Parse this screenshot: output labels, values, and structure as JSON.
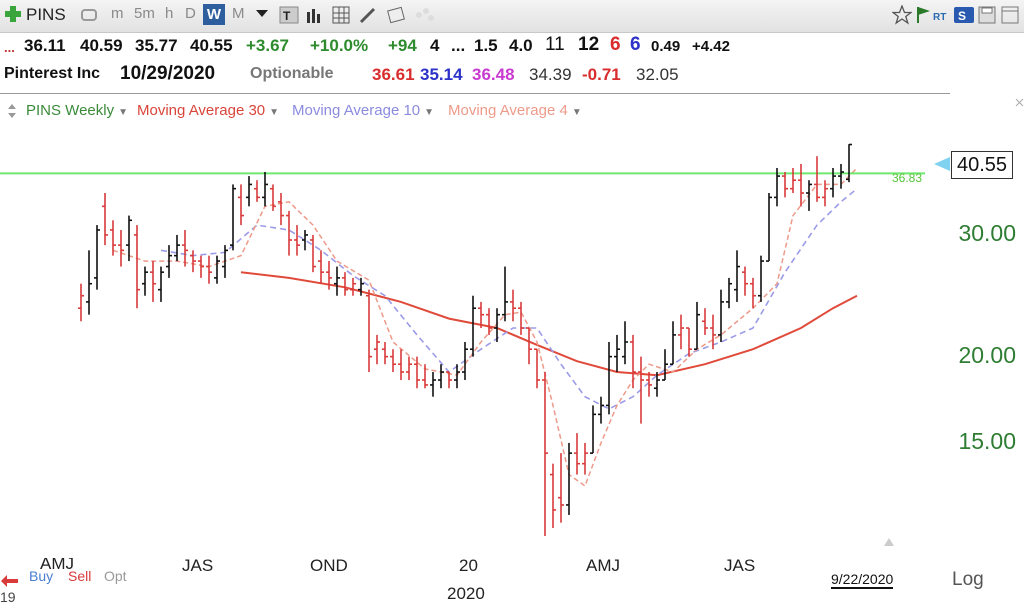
{
  "toolbar": {
    "symbol": "PINS",
    "timeframes": [
      "m",
      "5m",
      "h",
      "D",
      "W",
      "M"
    ],
    "active_timeframe": "W"
  },
  "quote_row1": {
    "ellipsis": "...",
    "open": "36.11",
    "high": "40.59",
    "low": "35.77",
    "close": "40.55",
    "change": "+3.67",
    "change_pct": "+10.0%",
    "rank": "+94",
    "v1": "4",
    "dots": "...",
    "v2": "1.5",
    "v3": "4.0",
    "v4": "11",
    "v5": "12",
    "v6": "6",
    "v7": "6",
    "v8": "0.49",
    "v9": "+4.42"
  },
  "quote_row2": {
    "name": "Pinterest Inc",
    "date": "10/29/2020",
    "optionable": "Optionable",
    "v1": "36.61",
    "v2": "35.14",
    "v3": "36.48",
    "v4": "34.39",
    "v5": "-0.71",
    "v6": "32.05"
  },
  "legend": {
    "series": "PINS Weekly",
    "ma30": "Moving Average 30",
    "ma10": "Moving Average 10",
    "ma4": "Moving Average 4"
  },
  "colors": {
    "up": "#111111",
    "down": "#d93a3a",
    "ma30": "#e04a3a",
    "ma10": "#9b9be8",
    "ma4": "#ee9a8a",
    "level": "#6ee86e",
    "axis_green": "#2e7d32"
  },
  "price_axis": {
    "ticks": [
      "30.00",
      "20.00",
      "15.00"
    ]
  },
  "last_price": "40.55",
  "level_line": {
    "value": 36.83,
    "label": "36.83"
  },
  "x_axis": {
    "labels": [
      "AMJ",
      "JAS",
      "OND",
      "20",
      "AMJ",
      "JAS"
    ],
    "year": "2020",
    "left_year_fragment": "19"
  },
  "bottom": {
    "buy": "Buy",
    "sell": "Sell",
    "opt": "Opt",
    "date": "9/22/2020",
    "log": "Log"
  },
  "chart_data": {
    "type": "line",
    "title": "PINS Weekly",
    "price_scale": "log",
    "ylim": [
      10.5,
      44
    ],
    "bars": [
      {
        "h": 25.5,
        "l": 22.5,
        "o": 23.5,
        "c": 24.5,
        "up": false
      },
      {
        "h": 28.5,
        "l": 23.0,
        "o": 24.0,
        "c": 25.5,
        "up": true
      },
      {
        "h": 31.0,
        "l": 25.0,
        "o": 26.0,
        "c": 30.5,
        "up": true
      },
      {
        "h": 34.5,
        "l": 29.0,
        "o": 33.0,
        "c": 30.0,
        "up": false
      },
      {
        "h": 31.5,
        "l": 28.0,
        "o": 30.5,
        "c": 29.0,
        "up": false
      },
      {
        "h": 30.5,
        "l": 27.0,
        "o": 29.0,
        "c": 28.5,
        "up": false
      },
      {
        "h": 32.0,
        "l": 27.5,
        "o": 29.0,
        "c": 31.5,
        "up": true
      },
      {
        "h": 31.0,
        "l": 23.5,
        "o": 30.0,
        "c": 25.0,
        "up": false
      },
      {
        "h": 27.0,
        "l": 24.5,
        "o": 25.5,
        "c": 26.5,
        "up": true
      },
      {
        "h": 27.5,
        "l": 24.0,
        "o": 26.5,
        "c": 25.5,
        "up": false
      },
      {
        "h": 27.0,
        "l": 24.0,
        "o": 25.0,
        "c": 26.5,
        "up": true
      },
      {
        "h": 29.0,
        "l": 26.0,
        "o": 27.0,
        "c": 28.0,
        "up": true
      },
      {
        "h": 30.0,
        "l": 27.5,
        "o": 28.0,
        "c": 29.0,
        "up": true
      },
      {
        "h": 30.5,
        "l": 27.0,
        "o": 29.0,
        "c": 28.5,
        "up": false
      },
      {
        "h": 28.5,
        "l": 26.5,
        "o": 28.0,
        "c": 27.5,
        "up": false
      },
      {
        "h": 28.0,
        "l": 26.0,
        "o": 27.5,
        "c": 27.0,
        "up": false
      },
      {
        "h": 28.0,
        "l": 25.5,
        "o": 27.0,
        "c": 26.5,
        "up": false
      },
      {
        "h": 28.0,
        "l": 25.5,
        "o": 26.0,
        "c": 27.5,
        "up": true
      },
      {
        "h": 29.0,
        "l": 26.0,
        "o": 27.0,
        "c": 28.5,
        "up": true
      },
      {
        "h": 35.5,
        "l": 28.5,
        "o": 29.0,
        "c": 35.0,
        "up": true
      },
      {
        "h": 35.5,
        "l": 31.0,
        "o": 34.0,
        "c": 32.0,
        "up": false
      },
      {
        "h": 36.5,
        "l": 33.0,
        "o": 34.0,
        "c": 35.5,
        "up": true
      },
      {
        "h": 36.0,
        "l": 33.5,
        "o": 35.0,
        "c": 34.0,
        "up": false
      },
      {
        "h": 37.0,
        "l": 33.0,
        "o": 34.0,
        "c": 35.5,
        "up": true
      },
      {
        "h": 35.5,
        "l": 32.5,
        "o": 35.0,
        "c": 33.0,
        "up": false
      },
      {
        "h": 34.5,
        "l": 31.0,
        "o": 33.5,
        "c": 32.0,
        "up": false
      },
      {
        "h": 32.5,
        "l": 28.0,
        "o": 32.0,
        "c": 29.5,
        "up": false
      },
      {
        "h": 31.0,
        "l": 28.0,
        "o": 29.5,
        "c": 29.0,
        "up": false
      },
      {
        "h": 30.5,
        "l": 28.5,
        "o": 29.5,
        "c": 30.0,
        "up": true
      },
      {
        "h": 30.0,
        "l": 26.5,
        "o": 29.5,
        "c": 27.0,
        "up": false
      },
      {
        "h": 28.5,
        "l": 25.5,
        "o": 27.5,
        "c": 26.5,
        "up": false
      },
      {
        "h": 27.5,
        "l": 25.0,
        "o": 26.5,
        "c": 26.0,
        "up": false
      },
      {
        "h": 27.0,
        "l": 24.5,
        "o": 25.5,
        "c": 26.0,
        "up": true
      },
      {
        "h": 26.5,
        "l": 24.5,
        "o": 26.0,
        "c": 25.0,
        "up": false
      },
      {
        "h": 26.0,
        "l": 24.5,
        "o": 25.0,
        "c": 25.5,
        "up": false
      },
      {
        "h": 26.0,
        "l": 24.5,
        "o": 25.0,
        "c": 25.5,
        "up": true
      },
      {
        "h": 25.0,
        "l": 19.0,
        "o": 24.5,
        "c": 20.0,
        "up": false
      },
      {
        "h": 21.5,
        "l": 19.5,
        "o": 20.5,
        "c": 21.0,
        "up": false
      },
      {
        "h": 21.0,
        "l": 19.5,
        "o": 20.5,
        "c": 20.0,
        "up": false
      },
      {
        "h": 20.5,
        "l": 19.0,
        "o": 20.0,
        "c": 19.5,
        "up": false
      },
      {
        "h": 20.5,
        "l": 18.5,
        "o": 19.5,
        "c": 19.0,
        "up": false
      },
      {
        "h": 20.0,
        "l": 18.5,
        "o": 19.0,
        "c": 19.5,
        "up": false
      },
      {
        "h": 20.0,
        "l": 18.0,
        "o": 19.5,
        "c": 18.5,
        "up": false
      },
      {
        "h": 19.5,
        "l": 18.0,
        "o": 18.5,
        "c": 18.2,
        "up": false
      },
      {
        "h": 19.0,
        "l": 17.5,
        "o": 18.2,
        "c": 18.5,
        "up": true
      },
      {
        "h": 19.5,
        "l": 18.0,
        "o": 18.5,
        "c": 19.0,
        "up": true
      },
      {
        "h": 19.0,
        "l": 18.0,
        "o": 19.0,
        "c": 18.5,
        "up": false
      },
      {
        "h": 19.5,
        "l": 18.0,
        "o": 18.5,
        "c": 19.0,
        "up": true
      },
      {
        "h": 21.0,
        "l": 18.5,
        "o": 19.0,
        "c": 20.5,
        "up": true
      },
      {
        "h": 24.5,
        "l": 20.0,
        "o": 20.5,
        "c": 23.5,
        "up": true
      },
      {
        "h": 24.0,
        "l": 22.0,
        "o": 23.5,
        "c": 23.0,
        "up": false
      },
      {
        "h": 23.5,
        "l": 21.5,
        "o": 23.0,
        "c": 22.0,
        "up": false
      },
      {
        "h": 23.5,
        "l": 21.0,
        "o": 22.0,
        "c": 23.0,
        "up": true
      },
      {
        "h": 27.0,
        "l": 22.5,
        "o": 23.0,
        "c": 24.0,
        "up": true
      },
      {
        "h": 25.0,
        "l": 22.5,
        "o": 24.0,
        "c": 23.5,
        "up": false
      },
      {
        "h": 24.0,
        "l": 21.5,
        "o": 23.5,
        "c": 22.0,
        "up": false
      },
      {
        "h": 22.0,
        "l": 19.5,
        "o": 22.0,
        "c": 20.5,
        "up": false
      },
      {
        "h": 20.5,
        "l": 18.0,
        "o": 20.5,
        "c": 18.5,
        "up": false
      },
      {
        "h": 19.0,
        "l": 11.0,
        "o": 18.5,
        "c": 14.5,
        "up": false
      },
      {
        "h": 14.0,
        "l": 11.3,
        "o": 13.5,
        "c": 12.0,
        "up": false
      },
      {
        "h": 14.5,
        "l": 11.5,
        "o": 12.5,
        "c": 12.2,
        "up": false
      },
      {
        "h": 15.0,
        "l": 11.8,
        "o": 12.2,
        "c": 14.5,
        "up": true
      },
      {
        "h": 15.5,
        "l": 13.5,
        "o": 14.5,
        "c": 14.0,
        "up": false
      },
      {
        "h": 15.0,
        "l": 13.5,
        "o": 14.0,
        "c": 14.5,
        "up": false
      },
      {
        "h": 17.0,
        "l": 14.5,
        "o": 14.5,
        "c": 16.5,
        "up": true
      },
      {
        "h": 17.5,
        "l": 16.0,
        "o": 16.5,
        "c": 17.0,
        "up": true
      },
      {
        "h": 21.0,
        "l": 16.5,
        "o": 17.0,
        "c": 20.0,
        "up": true
      },
      {
        "h": 21.5,
        "l": 19.0,
        "o": 20.0,
        "c": 20.5,
        "up": true
      },
      {
        "h": 22.5,
        "l": 19.5,
        "o": 20.0,
        "c": 21.0,
        "up": true
      },
      {
        "h": 21.5,
        "l": 18.0,
        "o": 21.0,
        "c": 19.0,
        "up": false
      },
      {
        "h": 20.0,
        "l": 16.0,
        "o": 19.0,
        "c": 18.5,
        "up": false
      },
      {
        "h": 19.0,
        "l": 17.5,
        "o": 18.5,
        "c": 18.2,
        "up": false
      },
      {
        "h": 19.0,
        "l": 17.5,
        "o": 18.0,
        "c": 18.5,
        "up": true
      },
      {
        "h": 20.5,
        "l": 18.5,
        "o": 18.5,
        "c": 19.5,
        "up": true
      },
      {
        "h": 22.5,
        "l": 19.5,
        "o": 19.5,
        "c": 21.5,
        "up": true
      },
      {
        "h": 23.0,
        "l": 20.5,
        "o": 21.5,
        "c": 22.0,
        "up": false
      },
      {
        "h": 22.0,
        "l": 20.0,
        "o": 22.0,
        "c": 20.5,
        "up": false
      },
      {
        "h": 24.0,
        "l": 20.5,
        "o": 20.5,
        "c": 23.0,
        "up": true
      },
      {
        "h": 23.5,
        "l": 21.5,
        "o": 22.5,
        "c": 22.0,
        "up": false
      },
      {
        "h": 23.0,
        "l": 20.5,
        "o": 22.0,
        "c": 21.5,
        "up": false
      },
      {
        "h": 25.0,
        "l": 21.0,
        "o": 21.5,
        "c": 24.0,
        "up": true
      },
      {
        "h": 26.0,
        "l": 23.5,
        "o": 24.0,
        "c": 25.5,
        "up": true
      },
      {
        "h": 28.5,
        "l": 24.0,
        "o": 25.0,
        "c": 27.0,
        "up": true
      },
      {
        "h": 27.0,
        "l": 24.5,
        "o": 26.5,
        "c": 25.5,
        "up": false
      },
      {
        "h": 26.0,
        "l": 23.5,
        "o": 25.5,
        "c": 24.5,
        "up": false
      },
      {
        "h": 28.0,
        "l": 24.0,
        "o": 24.5,
        "c": 27.5,
        "up": true
      },
      {
        "h": 34.5,
        "l": 27.5,
        "o": 27.5,
        "c": 34.0,
        "up": true
      },
      {
        "h": 37.5,
        "l": 33.0,
        "o": 34.0,
        "c": 36.5,
        "up": true
      },
      {
        "h": 37.0,
        "l": 34.0,
        "o": 36.5,
        "c": 35.0,
        "up": false
      },
      {
        "h": 37.5,
        "l": 34.5,
        "o": 35.0,
        "c": 36.0,
        "up": false
      },
      {
        "h": 38.0,
        "l": 33.0,
        "o": 36.0,
        "c": 34.5,
        "up": false
      },
      {
        "h": 36.0,
        "l": 32.5,
        "o": 34.5,
        "c": 35.5,
        "up": true
      },
      {
        "h": 39.0,
        "l": 33.5,
        "o": 35.5,
        "c": 34.0,
        "up": false
      },
      {
        "h": 36.0,
        "l": 33.0,
        "o": 34.0,
        "c": 35.0,
        "up": false
      },
      {
        "h": 37.5,
        "l": 34.0,
        "o": 35.0,
        "c": 36.5,
        "up": true
      },
      {
        "h": 38.0,
        "l": 35.0,
        "o": 36.5,
        "c": 37.0,
        "up": true
      },
      {
        "h": 40.59,
        "l": 35.77,
        "o": 36.11,
        "c": 40.55,
        "up": true
      }
    ],
    "ma30": [
      [
        20,
        26.5
      ],
      [
        26,
        26
      ],
      [
        33,
        25.2
      ],
      [
        40,
        24.0
      ],
      [
        46,
        22.7
      ],
      [
        52,
        22.0
      ],
      [
        57,
        20.8
      ],
      [
        62,
        19.7
      ],
      [
        67,
        19.0
      ],
      [
        72,
        18.8
      ],
      [
        78,
        19.5
      ],
      [
        84,
        20.5
      ],
      [
        90,
        22.0
      ],
      [
        94,
        23.5
      ],
      [
        97,
        24.5
      ]
    ],
    "ma10": [
      [
        10,
        28.5
      ],
      [
        14,
        28.0
      ],
      [
        18,
        28.3
      ],
      [
        22,
        31.0
      ],
      [
        26,
        30.5
      ],
      [
        30,
        28.5
      ],
      [
        34,
        26.2
      ],
      [
        38,
        24.5
      ],
      [
        42,
        21.5
      ],
      [
        46,
        19.0
      ],
      [
        50,
        20.5
      ],
      [
        54,
        22.0
      ],
      [
        57,
        22.0
      ],
      [
        60,
        19.5
      ],
      [
        63,
        17.5
      ],
      [
        66,
        16.8
      ],
      [
        69,
        17.5
      ],
      [
        72,
        18.8
      ],
      [
        76,
        20.2
      ],
      [
        80,
        21.0
      ],
      [
        84,
        22.0
      ],
      [
        88,
        26.5
      ],
      [
        92,
        31.0
      ],
      [
        95,
        33.5
      ],
      [
        97,
        35.0
      ]
    ],
    "ma4": [
      [
        4,
        28.5
      ],
      [
        8,
        27.5
      ],
      [
        12,
        27.5
      ],
      [
        16,
        27.0
      ],
      [
        20,
        28.0
      ],
      [
        23,
        33.0
      ],
      [
        26,
        33.5
      ],
      [
        29,
        31.0
      ],
      [
        32,
        27.5
      ],
      [
        36,
        25.8
      ],
      [
        39,
        21.0
      ],
      [
        43,
        19.2
      ],
      [
        47,
        18.8
      ],
      [
        50,
        21.0
      ],
      [
        53,
        23.0
      ],
      [
        55,
        23.2
      ],
      [
        57,
        21.0
      ],
      [
        59,
        17.0
      ],
      [
        61,
        13.5
      ],
      [
        63,
        13.0
      ],
      [
        65,
        15.0
      ],
      [
        67,
        17.0
      ],
      [
        69,
        18.5
      ],
      [
        71,
        19.5
      ],
      [
        74,
        19.0
      ],
      [
        77,
        20.5
      ],
      [
        80,
        21.5
      ],
      [
        84,
        23.5
      ],
      [
        87,
        25.5
      ],
      [
        89,
        32.0
      ],
      [
        92,
        35.5
      ],
      [
        95,
        35.5
      ],
      [
        97,
        37.5
      ]
    ]
  }
}
